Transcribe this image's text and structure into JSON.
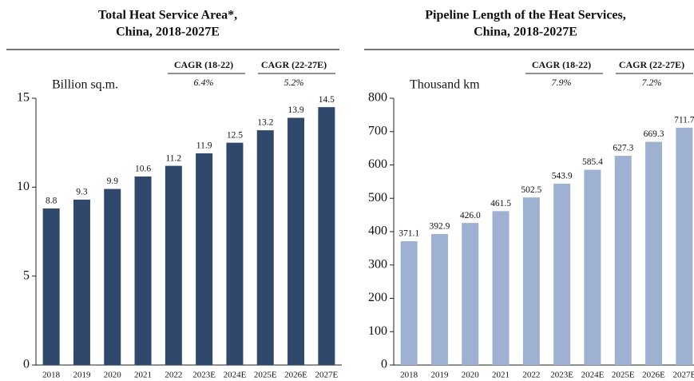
{
  "chart_data": [
    {
      "type": "bar",
      "title": "Total Heat Service Area*,",
      "subtitle": "China, 2018-2027E",
      "y_label": "Billion sq.m.",
      "annotations": [
        {
          "label": "CAGR (18-22)",
          "value": "6.4%"
        },
        {
          "label": "CAGR (22-27E)",
          "value": "5.2%"
        }
      ],
      "categories": [
        "2018",
        "2019",
        "2020",
        "2021",
        "2022",
        "2023E",
        "2024E",
        "2025E",
        "2026E",
        "2027E"
      ],
      "values": [
        8.8,
        9.3,
        9.9,
        10.6,
        11.2,
        11.9,
        12.5,
        13.2,
        13.9,
        14.5
      ],
      "color": "#30486b",
      "ylim": [
        0,
        15
      ],
      "yticks": [
        0,
        5,
        10,
        15
      ],
      "grid": false
    },
    {
      "type": "bar",
      "title": "Pipeline Length of the Heat Services,",
      "subtitle": "China, 2018-2027E",
      "y_label": "Thousand km",
      "annotations": [
        {
          "label": "CAGR (18-22)",
          "value": "7.9%"
        },
        {
          "label": "CAGR (22-27E)",
          "value": "7.2%"
        }
      ],
      "categories": [
        "2018",
        "2019",
        "2020",
        "2021",
        "2022",
        "2023E",
        "2024E",
        "2025E",
        "2026E",
        "2027E"
      ],
      "values": [
        371.1,
        392.9,
        426.0,
        461.5,
        502.5,
        543.9,
        585.4,
        627.3,
        669.3,
        711.7
      ],
      "value_labels": [
        "371.1",
        "392.9",
        "426.0",
        "461.5",
        "502.5",
        "543.9",
        "585.4",
        "627.3",
        "669.3",
        "711.7"
      ],
      "color": "#9fb1d2",
      "ylim": [
        0,
        800
      ],
      "yticks": [
        0,
        100,
        200,
        300,
        400,
        500,
        600,
        700,
        800
      ],
      "grid": false
    }
  ]
}
